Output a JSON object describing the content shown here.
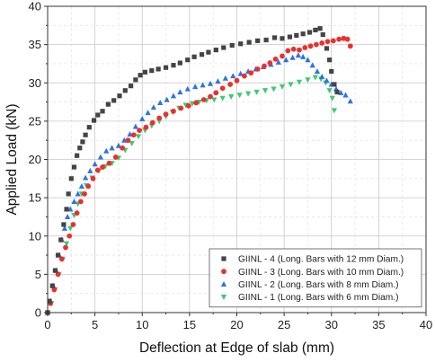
{
  "chart_data": {
    "type": "scatter",
    "xlabel": "Deflection at Edge of slab (mm)",
    "ylabel": "Applied Load (kN)",
    "xlim": [
      0,
      40
    ],
    "ylim": [
      0,
      40
    ],
    "xticks": [
      0,
      5,
      10,
      15,
      20,
      25,
      30,
      35,
      40
    ],
    "yticks": [
      0,
      5,
      10,
      15,
      20,
      25,
      30,
      35,
      40
    ],
    "grid": true,
    "legend_position": "bottom-right",
    "series": [
      {
        "name": "GIINL - 4 (Long. Bars with 12 mm Diam.)",
        "color": "#444444",
        "marker": "square",
        "points": [
          [
            0,
            0
          ],
          [
            0.2,
            1.5
          ],
          [
            0.5,
            3.5
          ],
          [
            0.8,
            5.5
          ],
          [
            1.1,
            7.5
          ],
          [
            1.4,
            9.5
          ],
          [
            1.7,
            11.5
          ],
          [
            2.0,
            13.5
          ],
          [
            2.2,
            15.5
          ],
          [
            2.5,
            17.5
          ],
          [
            2.8,
            19
          ],
          [
            3.1,
            20.5
          ],
          [
            3.4,
            21.5
          ],
          [
            3.7,
            22.3
          ],
          [
            4.0,
            23.2
          ],
          [
            4.4,
            24.2
          ],
          [
            4.9,
            25.1
          ],
          [
            5.3,
            25.8
          ],
          [
            5.8,
            26.3
          ],
          [
            6.4,
            27.2
          ],
          [
            7.0,
            27.7
          ],
          [
            7.6,
            28.3
          ],
          [
            8.2,
            29.0
          ],
          [
            8.8,
            29.6
          ],
          [
            9.3,
            30.4
          ],
          [
            9.8,
            31.0
          ],
          [
            10.3,
            31.4
          ],
          [
            11.0,
            31.6
          ],
          [
            11.7,
            31.8
          ],
          [
            12.5,
            32.0
          ],
          [
            13.3,
            32.3
          ],
          [
            14.0,
            32.6
          ],
          [
            14.8,
            33.0
          ],
          [
            15.5,
            33.4
          ],
          [
            16.3,
            33.7
          ],
          [
            17.0,
            34.0
          ],
          [
            17.8,
            34.3
          ],
          [
            18.6,
            34.6
          ],
          [
            19.5,
            34.9
          ],
          [
            20.4,
            35.1
          ],
          [
            21.3,
            35.3
          ],
          [
            22.2,
            35.5
          ],
          [
            23.1,
            35.6
          ],
          [
            24.0,
            35.9
          ],
          [
            24.8,
            35.8
          ],
          [
            25.6,
            36.0
          ],
          [
            26.3,
            36.2
          ],
          [
            27.0,
            36.4
          ],
          [
            27.7,
            36.6
          ],
          [
            28.3,
            36.9
          ],
          [
            28.8,
            37.1
          ],
          [
            29.1,
            36.3
          ],
          [
            29.5,
            34.5
          ],
          [
            29.8,
            33.0
          ],
          [
            30.0,
            31.5
          ],
          [
            30.3,
            29.8
          ],
          [
            30.6,
            28.8
          ]
        ]
      },
      {
        "name": "GIINL - 3 (Long. Bars with 10 mm Diam.)",
        "color": "#e8312f",
        "marker": "circle",
        "points": [
          [
            0,
            0
          ],
          [
            0.3,
            1.2
          ],
          [
            0.7,
            3.0
          ],
          [
            1.1,
            5.0
          ],
          [
            1.5,
            7.0
          ],
          [
            1.9,
            8.5
          ],
          [
            2.3,
            10.0
          ],
          [
            2.7,
            11.5
          ],
          [
            3.1,
            13.0
          ],
          [
            3.5,
            14.5
          ],
          [
            3.9,
            15.5
          ],
          [
            4.3,
            16.5
          ],
          [
            4.8,
            17.5
          ],
          [
            5.3,
            18.6
          ],
          [
            5.8,
            19.0
          ],
          [
            6.5,
            19.5
          ],
          [
            7.2,
            20.3
          ],
          [
            7.9,
            21.5
          ],
          [
            8.5,
            22.5
          ],
          [
            9.1,
            23.2
          ],
          [
            9.7,
            23.8
          ],
          [
            10.4,
            24.2
          ],
          [
            11.1,
            24.8
          ],
          [
            11.8,
            25.4
          ],
          [
            12.5,
            25.9
          ],
          [
            13.3,
            26.3
          ],
          [
            14.1,
            26.7
          ],
          [
            14.9,
            27.0
          ],
          [
            15.7,
            27.4
          ],
          [
            16.5,
            27.8
          ],
          [
            17.2,
            28.2
          ],
          [
            17.8,
            28.7
          ],
          [
            18.5,
            29.3
          ],
          [
            19.3,
            29.8
          ],
          [
            20.0,
            30.3
          ],
          [
            20.8,
            30.9
          ],
          [
            21.5,
            31.3
          ],
          [
            22.2,
            31.8
          ],
          [
            22.9,
            32.2
          ],
          [
            23.5,
            32.6
          ],
          [
            24.1,
            33.1
          ],
          [
            24.8,
            33.5
          ],
          [
            25.4,
            34.2
          ],
          [
            26.0,
            34.4
          ],
          [
            26.6,
            34.3
          ],
          [
            27.2,
            34.6
          ],
          [
            27.8,
            34.8
          ],
          [
            28.4,
            35.0
          ],
          [
            29.0,
            35.2
          ],
          [
            29.6,
            35.4
          ],
          [
            30.2,
            35.5
          ],
          [
            30.8,
            35.7
          ],
          [
            31.3,
            35.8
          ],
          [
            31.7,
            35.7
          ],
          [
            32.0,
            34.8
          ]
        ]
      },
      {
        "name": "GIINL - 2 (Long. Bars with 8 mm Diam.)",
        "color": "#2f73e0",
        "marker": "triangle-up",
        "points": [
          [
            0,
            0
          ],
          [
            0.3,
            1.5
          ],
          [
            0.6,
            3.5
          ],
          [
            0.9,
            5.5
          ],
          [
            1.2,
            7.5
          ],
          [
            1.5,
            9.5
          ],
          [
            1.8,
            11.0
          ],
          [
            2.1,
            12.5
          ],
          [
            2.4,
            13.5
          ],
          [
            2.8,
            14.5
          ],
          [
            3.2,
            15.5
          ],
          [
            3.6,
            16.5
          ],
          [
            4.0,
            17.6
          ],
          [
            4.5,
            18.5
          ],
          [
            5.0,
            19.4
          ],
          [
            5.6,
            20.3
          ],
          [
            6.2,
            21.1
          ],
          [
            6.8,
            21.5
          ],
          [
            7.5,
            21.8
          ],
          [
            8.1,
            22.5
          ],
          [
            8.7,
            23.3
          ],
          [
            9.3,
            24.3
          ],
          [
            10.0,
            25.3
          ],
          [
            10.6,
            26.1
          ],
          [
            11.2,
            26.8
          ],
          [
            11.9,
            27.4
          ],
          [
            12.6,
            27.8
          ],
          [
            13.3,
            28.3
          ],
          [
            14.0,
            28.8
          ],
          [
            14.8,
            29.2
          ],
          [
            15.6,
            29.5
          ],
          [
            16.4,
            29.7
          ],
          [
            17.2,
            29.9
          ],
          [
            18.0,
            30.2
          ],
          [
            18.8,
            30.6
          ],
          [
            19.6,
            30.9
          ],
          [
            20.4,
            31.2
          ],
          [
            21.2,
            31.5
          ],
          [
            22.0,
            31.8
          ],
          [
            22.8,
            32.1
          ],
          [
            23.6,
            32.4
          ],
          [
            24.4,
            32.7
          ],
          [
            25.2,
            33.0
          ],
          [
            25.9,
            33.3
          ],
          [
            26.5,
            33.6
          ],
          [
            27.0,
            33.4
          ],
          [
            27.5,
            33.0
          ],
          [
            28.0,
            32.3
          ],
          [
            28.5,
            31.5
          ],
          [
            29.0,
            30.8
          ],
          [
            29.5,
            30.3
          ],
          [
            30.0,
            29.8
          ],
          [
            30.5,
            29.2
          ],
          [
            31.0,
            28.7
          ],
          [
            31.5,
            28.4
          ],
          [
            32.0,
            27.6
          ]
        ]
      },
      {
        "name": "GIINL - 1 (Long. Bars with 6 mm Diam.)",
        "color": "#3ec972",
        "marker": "triangle-down",
        "points": [
          [
            0,
            0
          ],
          [
            0.4,
            1.2
          ],
          [
            0.8,
            3.0
          ],
          [
            1.2,
            5.0
          ],
          [
            1.6,
            7.0
          ],
          [
            2.0,
            9.0
          ],
          [
            2.4,
            11.0
          ],
          [
            2.8,
            12.7
          ],
          [
            3.2,
            14.2
          ],
          [
            3.6,
            15.5
          ],
          [
            4.1,
            16.6
          ],
          [
            4.7,
            17.6
          ],
          [
            5.4,
            18.5
          ],
          [
            6.1,
            19.1
          ],
          [
            6.8,
            19.5
          ],
          [
            7.5,
            20.2
          ],
          [
            8.2,
            21.2
          ],
          [
            8.9,
            22.1
          ],
          [
            9.6,
            23.0
          ],
          [
            10.3,
            23.8
          ],
          [
            11.0,
            24.4
          ],
          [
            11.8,
            25.0
          ],
          [
            12.5,
            25.6
          ],
          [
            13.2,
            26.2
          ],
          [
            13.9,
            26.7
          ],
          [
            14.6,
            27.1
          ],
          [
            15.3,
            27.3
          ],
          [
            16.0,
            27.5
          ],
          [
            16.8,
            27.7
          ],
          [
            17.6,
            27.8
          ],
          [
            18.5,
            28.0
          ],
          [
            19.4,
            28.2
          ],
          [
            20.3,
            28.4
          ],
          [
            21.2,
            28.6
          ],
          [
            22.1,
            28.8
          ],
          [
            23.0,
            29.0
          ],
          [
            23.9,
            29.2
          ],
          [
            24.8,
            29.5
          ],
          [
            25.7,
            29.8
          ],
          [
            26.6,
            30.1
          ],
          [
            27.5,
            30.4
          ],
          [
            28.3,
            30.7
          ],
          [
            28.9,
            30.5
          ],
          [
            29.4,
            30.0
          ],
          [
            29.8,
            29.0
          ],
          [
            30.1,
            28.0
          ],
          [
            30.3,
            26.4
          ]
        ]
      }
    ]
  }
}
